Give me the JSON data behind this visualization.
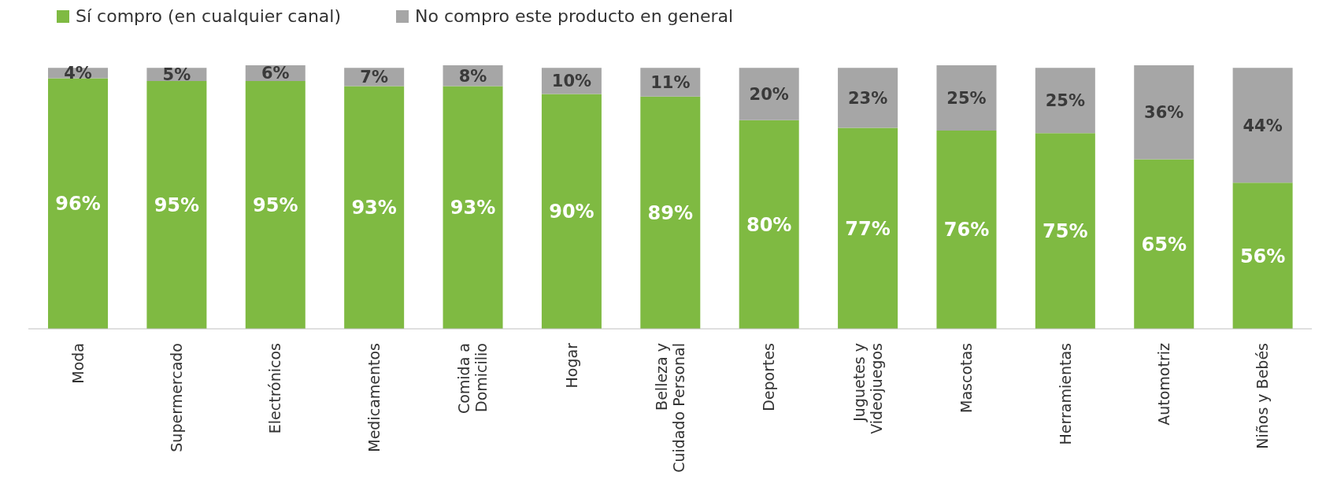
{
  "chart_data": {
    "type": "bar",
    "stacked": true,
    "legend": "top left",
    "grid": false,
    "categories": [
      "Moda",
      "Supermercado",
      "Electrónicos",
      "Medicamentos",
      "Comida a Domicilio",
      "Hogar",
      "Belleza y Cuidado Personal",
      "Deportes",
      "Juguetes y Videojuegos",
      "Mascotas",
      "Herramientas",
      "Automotriz",
      "Niños y Bebés"
    ],
    "series": [
      {
        "name": "Sí compro (en cualquier canal)",
        "color": "#7fba42",
        "values": [
          96,
          95,
          95,
          93,
          93,
          90,
          89,
          80,
          77,
          76,
          75,
          65,
          56
        ],
        "value_labels": [
          "96%",
          "95%",
          "95%",
          "93%",
          "93%",
          "90%",
          "89%",
          "80%",
          "77%",
          "76%",
          "75%",
          "65%",
          "56%"
        ]
      },
      {
        "name": "No compro este producto en general",
        "color": "#a6a6a6",
        "values": [
          4,
          5,
          6,
          7,
          8,
          10,
          11,
          20,
          23,
          25,
          25,
          36,
          44
        ],
        "value_labels": [
          "4%",
          "5%",
          "6%",
          "7%",
          "8%",
          "10%",
          "11%",
          "20%",
          "23%",
          "25%",
          "25%",
          "36%",
          "44%"
        ]
      }
    ]
  }
}
